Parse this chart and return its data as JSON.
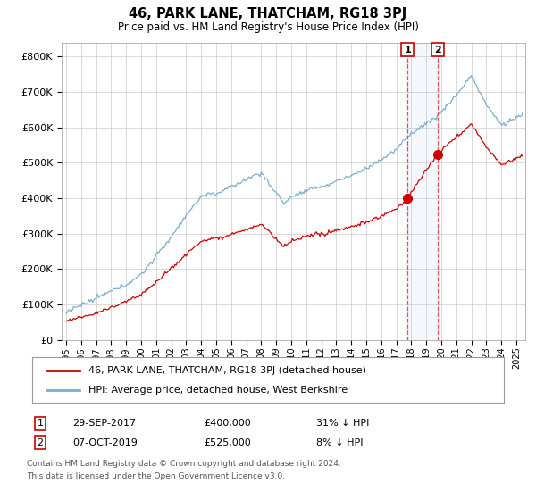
{
  "title": "46, PARK LANE, THATCHAM, RG18 3PJ",
  "subtitle": "Price paid vs. HM Land Registry's House Price Index (HPI)",
  "ylabel_ticks": [
    "£0",
    "£100K",
    "£200K",
    "£300K",
    "£400K",
    "£500K",
    "£600K",
    "£700K",
    "£800K"
  ],
  "ytick_values": [
    0,
    100000,
    200000,
    300000,
    400000,
    500000,
    600000,
    700000,
    800000
  ],
  "ylim": [
    0,
    840000
  ],
  "xlabel_years": [
    "1995",
    "1996",
    "1997",
    "1998",
    "1999",
    "2000",
    "2001",
    "2002",
    "2003",
    "2004",
    "2005",
    "2006",
    "2007",
    "2008",
    "2009",
    "2010",
    "2011",
    "2012",
    "2013",
    "2014",
    "2015",
    "2016",
    "2017",
    "2018",
    "2019",
    "2020",
    "2021",
    "2022",
    "2023",
    "2024",
    "2025"
  ],
  "transaction1_date": "29-SEP-2017",
  "transaction1_price": 400000,
  "transaction1_price_str": "£400,000",
  "transaction1_pct": "31% ↓ HPI",
  "transaction1_x": 2017.75,
  "transaction2_date": "07-OCT-2019",
  "transaction2_price": 525000,
  "transaction2_price_str": "£525,000",
  "transaction2_pct": "8% ↓ HPI",
  "transaction2_x": 2019.77,
  "legend_label1": "46, PARK LANE, THATCHAM, RG18 3PJ (detached house)",
  "legend_label2": "HPI: Average price, detached house, West Berkshire",
  "footer1": "Contains HM Land Registry data © Crown copyright and database right 2024.",
  "footer2": "This data is licensed under the Open Government Licence v3.0.",
  "red_color": "#cc0000",
  "blue_color": "#7aadd4",
  "vline_color": "#dd4444",
  "bg_color": "#ffffff",
  "grid_color": "#cccccc"
}
